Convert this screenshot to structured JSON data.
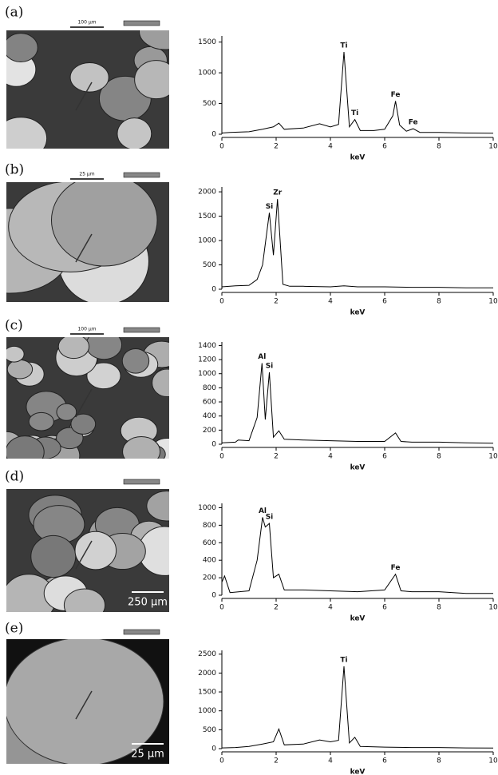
{
  "chart_data": [
    {
      "type": "line",
      "panel": "(a)",
      "xlabel": "keV",
      "scale_label": "100 µm",
      "color": "#000",
      "xlim": [
        0,
        10
      ],
      "xticks": [
        0,
        2,
        4,
        6,
        8,
        10
      ],
      "ylim": [
        0,
        1600
      ],
      "yticks": [
        0,
        500,
        1000,
        1500
      ],
      "x": [
        0,
        0.3,
        1,
        1.5,
        1.9,
        2.1,
        2.3,
        3,
        3.6,
        4,
        4.3,
        4.5,
        4.7,
        4.9,
        5.1,
        5.6,
        6,
        6.3,
        6.4,
        6.55,
        6.8,
        7.05,
        7.3,
        8,
        9,
        10
      ],
      "values": [
        20,
        30,
        40,
        80,
        120,
        180,
        80,
        100,
        170,
        120,
        160,
        1340,
        120,
        240,
        60,
        60,
        80,
        300,
        540,
        150,
        50,
        90,
        30,
        30,
        20,
        15
      ],
      "annotations": [
        {
          "text": "Ti",
          "x": 4.5,
          "y": 1340
        },
        {
          "text": "Ti",
          "x": 4.9,
          "y": 240
        },
        {
          "text": "Fe",
          "x": 6.4,
          "y": 540
        },
        {
          "text": "Fe",
          "x": 7.05,
          "y": 90
        }
      ]
    },
    {
      "type": "line",
      "panel": "(b)",
      "xlabel": "keV",
      "scale_label": "25 µm",
      "color": "#000",
      "xlim": [
        0,
        10
      ],
      "xticks": [
        0,
        2,
        4,
        6,
        8,
        10
      ],
      "ylim": [
        0,
        2100
      ],
      "yticks": [
        0,
        500,
        1000,
        1500,
        2000
      ],
      "x": [
        0,
        0.5,
        1,
        1.3,
        1.5,
        1.75,
        1.9,
        2.05,
        2.25,
        2.5,
        3,
        4,
        4.5,
        5,
        6,
        7,
        8,
        9,
        10
      ],
      "values": [
        50,
        70,
        80,
        200,
        500,
        1570,
        700,
        1850,
        100,
        60,
        60,
        50,
        70,
        50,
        50,
        40,
        40,
        30,
        30
      ],
      "annotations": [
        {
          "text": "Si",
          "x": 1.75,
          "y": 1570
        },
        {
          "text": "Zr",
          "x": 2.05,
          "y": 1850
        }
      ]
    },
    {
      "type": "line",
      "panel": "(c)",
      "xlabel": "keV",
      "scale_label": "100 µm",
      "color": "#000",
      "xlim": [
        0,
        10
      ],
      "xticks": [
        0,
        2,
        4,
        6,
        8,
        10
      ],
      "ylim": [
        0,
        1450
      ],
      "yticks": [
        0,
        200,
        400,
        600,
        800,
        1000,
        1200,
        1400
      ],
      "x": [
        0,
        0.5,
        0.6,
        1,
        1.3,
        1.48,
        1.6,
        1.75,
        1.9,
        2.1,
        2.3,
        3,
        4,
        5,
        6,
        6.4,
        6.6,
        7,
        8,
        9,
        10
      ],
      "values": [
        20,
        30,
        60,
        50,
        380,
        1150,
        350,
        1020,
        100,
        190,
        70,
        60,
        50,
        40,
        40,
        160,
        40,
        30,
        30,
        20,
        15
      ],
      "annotations": [
        {
          "text": "Al",
          "x": 1.48,
          "y": 1150
        },
        {
          "text": "Si",
          "x": 1.75,
          "y": 1020
        }
      ]
    },
    {
      "type": "line",
      "panel": "(d)",
      "xlabel": "keV",
      "scale_label": "250 µm",
      "color": "#000",
      "xlim": [
        0,
        10
      ],
      "xticks": [
        0,
        2,
        4,
        6,
        8,
        10
      ],
      "ylim": [
        0,
        1050
      ],
      "yticks": [
        0,
        200,
        400,
        600,
        800,
        1000
      ],
      "x": [
        0,
        0.1,
        0.3,
        1,
        1.3,
        1.5,
        1.6,
        1.75,
        1.9,
        2.1,
        2.3,
        3,
        4,
        5,
        6,
        6.4,
        6.6,
        7,
        8,
        9,
        10
      ],
      "values": [
        150,
        220,
        30,
        50,
        400,
        890,
        780,
        820,
        200,
        240,
        60,
        60,
        50,
        40,
        60,
        240,
        50,
        40,
        40,
        20,
        20
      ],
      "annotations": [
        {
          "text": "Al",
          "x": 1.5,
          "y": 890
        },
        {
          "text": "Si",
          "x": 1.75,
          "y": 820
        },
        {
          "text": "Fe",
          "x": 6.4,
          "y": 240
        }
      ]
    },
    {
      "type": "line",
      "panel": "(e)",
      "xlabel": "keV",
      "scale_label": "25 µm",
      "color": "#000",
      "xlim": [
        0,
        10
      ],
      "xticks": [
        0,
        2,
        4,
        6,
        8,
        10
      ],
      "ylim": [
        0,
        2600
      ],
      "yticks": [
        0,
        500,
        1000,
        1500,
        2000,
        2500
      ],
      "x": [
        0,
        0.5,
        1,
        1.5,
        1.9,
        2.1,
        2.3,
        3,
        3.6,
        4,
        4.3,
        4.5,
        4.7,
        4.9,
        5.1,
        6,
        7,
        8,
        9,
        10
      ],
      "values": [
        20,
        30,
        60,
        120,
        180,
        520,
        100,
        120,
        230,
        180,
        220,
        2180,
        150,
        300,
        60,
        40,
        30,
        30,
        20,
        15
      ],
      "annotations": [
        {
          "text": "Ti",
          "x": 4.5,
          "y": 2180
        }
      ]
    }
  ]
}
